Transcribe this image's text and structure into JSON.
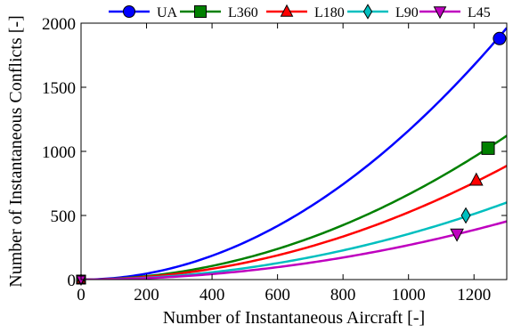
{
  "chart_data": {
    "type": "line",
    "title": "",
    "xlabel": "Number of Instantaneous Aircraft [-]",
    "ylabel": "Number of Instantaneous Conflicts [-]",
    "xlim": [
      0,
      1300
    ],
    "ylim": [
      0,
      2000
    ],
    "xticks": [
      0,
      200,
      400,
      600,
      800,
      1000,
      1200
    ],
    "yticks": [
      0,
      500,
      1000,
      1500,
      2000
    ],
    "grid": false,
    "legend_position": "top, above plot",
    "series": [
      {
        "name": "UA",
        "color": "#0000ff",
        "marker": "circle",
        "x": [
          0,
          100,
          200,
          300,
          400,
          500,
          600,
          700,
          800,
          900,
          1000,
          1100,
          1200,
          1300
        ],
        "values": [
          0,
          12,
          47,
          105,
          186,
          291,
          418,
          570,
          744,
          941,
          1162,
          1406,
          1673,
          1963
        ],
        "marker_point": {
          "x": 1278,
          "y": 1880
        }
      },
      {
        "name": "L360",
        "color": "#008000",
        "marker": "square",
        "x": [
          0,
          100,
          200,
          300,
          400,
          500,
          600,
          700,
          800,
          900,
          1000,
          1100,
          1200,
          1300
        ],
        "values": [
          0,
          7,
          27,
          60,
          106,
          166,
          239,
          325,
          425,
          538,
          664,
          803,
          956,
          1122
        ],
        "marker_point": {
          "x": 1243,
          "y": 1025
        }
      },
      {
        "name": "L180",
        "color": "#ff0000",
        "marker": "triangle-up",
        "x": [
          0,
          100,
          200,
          300,
          400,
          500,
          600,
          700,
          800,
          900,
          1000,
          1100,
          1200,
          1300
        ],
        "values": [
          0,
          5,
          21,
          47,
          84,
          131,
          189,
          257,
          336,
          425,
          525,
          635,
          756,
          887
        ],
        "marker_point": {
          "x": 1207,
          "y": 775
        }
      },
      {
        "name": "L90",
        "color": "#00bfbf",
        "marker": "diamond",
        "x": [
          0,
          100,
          200,
          300,
          400,
          500,
          600,
          700,
          800,
          900,
          1000,
          1100,
          1200,
          1300
        ],
        "values": [
          0,
          4,
          14,
          32,
          57,
          89,
          128,
          174,
          227,
          288,
          355,
          430,
          512,
          601
        ],
        "marker_point": {
          "x": 1175,
          "y": 500
        }
      },
      {
        "name": "L45",
        "color": "#bf00bf",
        "marker": "triangle-down",
        "x": [
          0,
          100,
          200,
          300,
          400,
          500,
          600,
          700,
          800,
          900,
          1000,
          1100,
          1200,
          1300
        ],
        "values": [
          0,
          3,
          11,
          24,
          43,
          67,
          97,
          132,
          172,
          218,
          269,
          325,
          387,
          454
        ],
        "marker_point": {
          "x": 1148,
          "y": 355
        }
      }
    ]
  }
}
